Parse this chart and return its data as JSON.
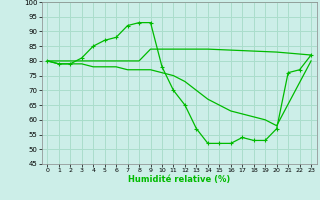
{
  "xlabel": "Humidité relative (%)",
  "background_color": "#cceee8",
  "grid_color": "#aaddcc",
  "line_color": "#00bb00",
  "xlim": [
    -0.5,
    23.5
  ],
  "ylim": [
    45,
    100
  ],
  "yticks": [
    45,
    50,
    55,
    60,
    65,
    70,
    75,
    80,
    85,
    90,
    95,
    100
  ],
  "xticks": [
    0,
    1,
    2,
    3,
    4,
    5,
    6,
    7,
    8,
    9,
    10,
    11,
    12,
    13,
    14,
    15,
    16,
    17,
    18,
    19,
    20,
    21,
    22,
    23
  ],
  "series1_x": [
    0,
    1,
    2,
    3,
    4,
    5,
    6,
    7,
    8,
    9,
    10,
    11,
    12,
    13,
    14,
    15,
    16,
    17,
    18,
    19,
    20,
    21,
    22,
    23
  ],
  "series1_y": [
    80,
    79,
    79,
    81,
    85,
    87,
    88,
    92,
    93,
    93,
    78,
    70,
    65,
    57,
    52,
    52,
    52,
    54,
    53,
    53,
    57,
    76,
    77,
    82
  ],
  "series2_x": [
    0,
    1,
    2,
    3,
    4,
    5,
    6,
    7,
    8,
    9,
    10,
    14,
    20,
    23
  ],
  "series2_y": [
    80,
    80,
    80,
    80,
    80,
    80,
    80,
    80,
    80,
    84,
    84,
    84,
    83,
    82
  ],
  "series3_x": [
    0,
    1,
    2,
    3,
    4,
    5,
    6,
    7,
    8,
    9,
    10,
    11,
    12,
    13,
    14,
    15,
    16,
    17,
    18,
    19,
    20,
    23
  ],
  "series3_y": [
    80,
    79,
    79,
    79,
    78,
    78,
    78,
    77,
    77,
    77,
    76,
    75,
    73,
    70,
    67,
    65,
    63,
    62,
    61,
    60,
    58,
    80
  ]
}
